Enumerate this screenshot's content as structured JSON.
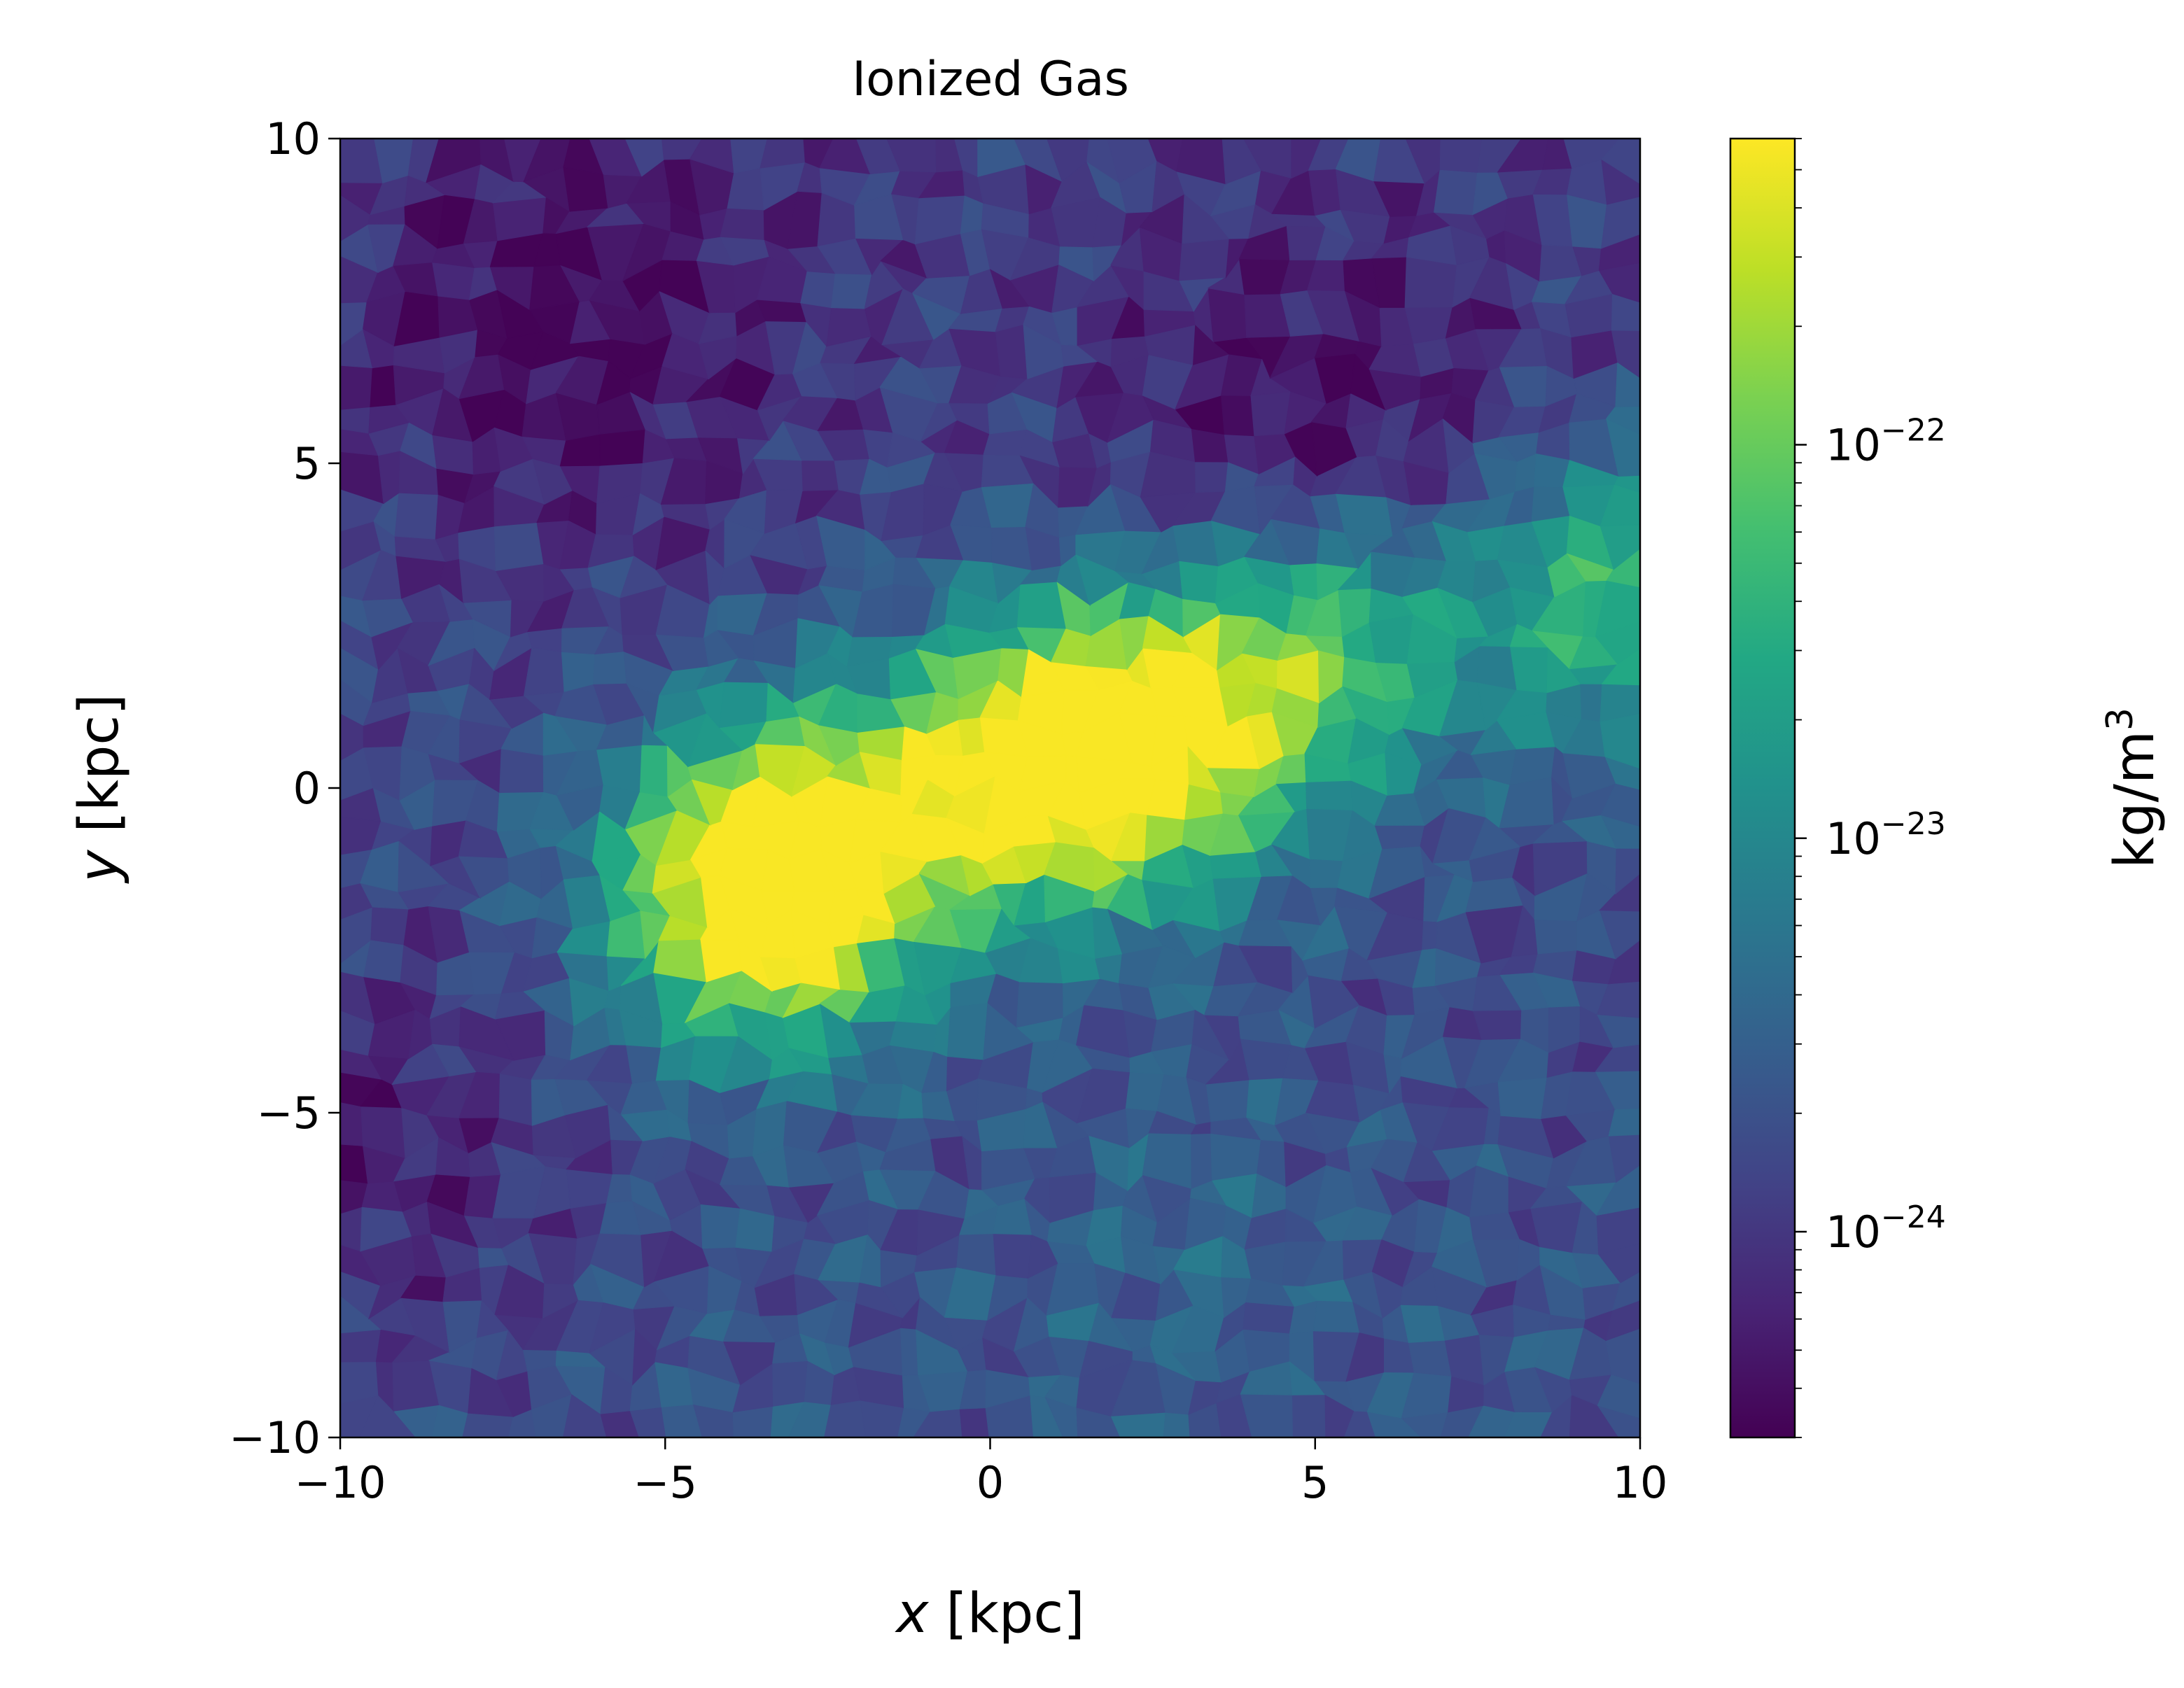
{
  "chart_data": {
    "type": "heatmap",
    "title": "Ionized Gas",
    "xlabel_var": "x",
    "xlabel_unit": "[kpc]",
    "ylabel_var": "y",
    "ylabel_unit": "[kpc]",
    "xlim": [
      -10,
      10
    ],
    "ylim": [
      -10,
      10
    ],
    "x_ticks": [
      -10,
      -5,
      0,
      5,
      10
    ],
    "y_ticks": [
      -10,
      -5,
      0,
      5,
      10
    ],
    "x_tick_labels": [
      "−10",
      "−5",
      "0",
      "5",
      "10"
    ],
    "y_tick_labels": [
      "−10",
      "−5",
      "0",
      "5",
      "10"
    ],
    "colorbar": {
      "label_base": "kg/m",
      "label_exp": "3",
      "scale": "log",
      "colormap": "viridis",
      "range": [
        3e-25,
        6e-22
      ],
      "major_ticks": [
        1e-24,
        1e-23,
        1e-22
      ],
      "major_tick_labels": [
        {
          "base": "10",
          "exp": "−24"
        },
        {
          "base": "10",
          "exp": "−23"
        },
        {
          "base": "10",
          "exp": "−22"
        }
      ]
    },
    "density_field_features": [
      {
        "x": 0.5,
        "y": 0.3,
        "density": 2e-22,
        "note": "dense central bar"
      },
      {
        "x": 2.5,
        "y": 0.8,
        "density": 3e-22
      },
      {
        "x": -2.8,
        "y": -1.0,
        "density": 2e-22
      },
      {
        "x": -3.8,
        "y": -1.8,
        "density": 1.2e-22
      },
      {
        "x": 9.6,
        "y": 3.0,
        "density": 6e-23
      },
      {
        "x": 5.2,
        "y": 2.2,
        "density": 8e-23
      },
      {
        "x": -6.5,
        "y": 7.0,
        "density": 4e-25
      },
      {
        "x": 5.0,
        "y": 5.0,
        "density": 3.5e-25
      },
      {
        "x": -9.6,
        "y": -5.8,
        "density": 5e-25
      },
      {
        "x": 3.0,
        "y": -7.0,
        "density": 3e-24
      }
    ]
  }
}
